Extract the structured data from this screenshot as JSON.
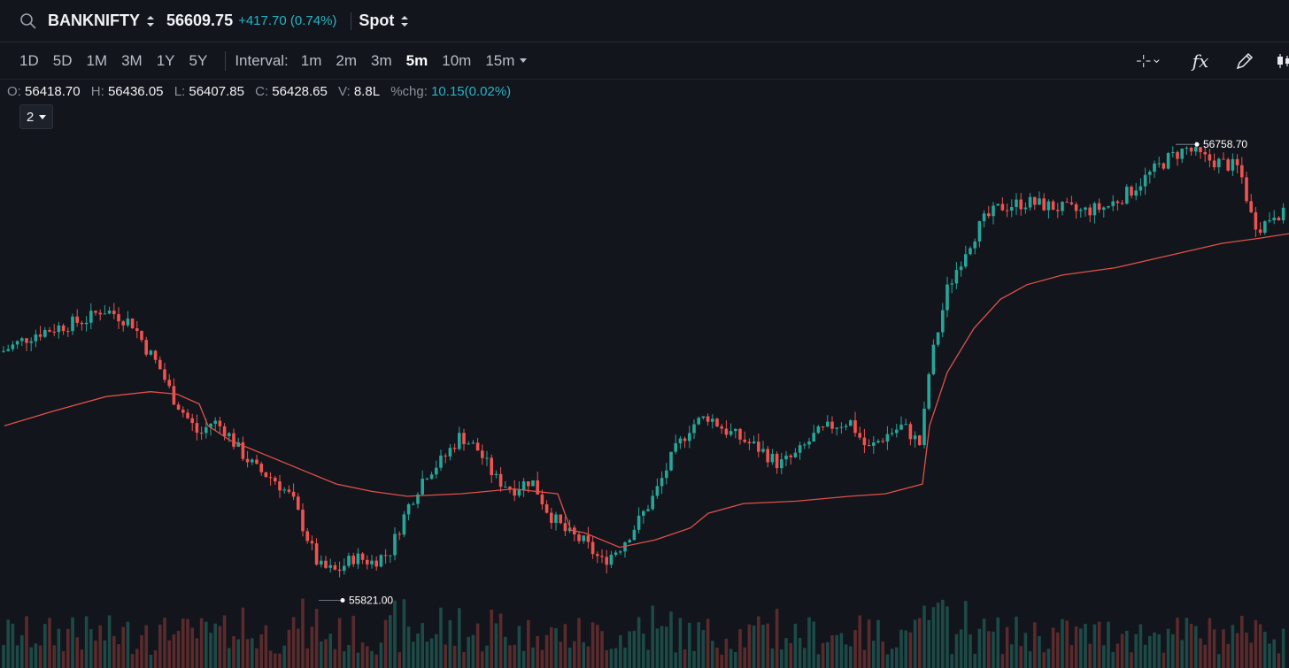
{
  "header": {
    "symbol": "BANKNIFTY",
    "price": "56609.75",
    "change": "+417.70 (0.74%)",
    "instrument": "Spot",
    "search_icon": "search-icon",
    "updown_icon": "updown-chevron-icon"
  },
  "toolbar": {
    "ranges": [
      "1D",
      "5D",
      "1M",
      "3M",
      "1Y",
      "5Y"
    ],
    "interval_label": "Interval:",
    "intervals": [
      "1m",
      "2m",
      "3m",
      "5m",
      "10m",
      "15m"
    ],
    "active_interval": "5m",
    "tools": [
      "crosshair-icon",
      "function-icon",
      "pen-icon",
      "candles-icon"
    ],
    "fx_glyph": "fx"
  },
  "ohlc": {
    "o_label": "O:",
    "o": "56418.70",
    "h_label": "H:",
    "h": "56436.05",
    "l_label": "L:",
    "l": "56407.85",
    "c_label": "C:",
    "c": "56428.65",
    "v_label": "V:",
    "v": "8.8L",
    "chg_label": "%chg:",
    "chg": "10.15(0.02%)"
  },
  "layer_selector": "2",
  "colors": {
    "background": "#12151b",
    "up": "#26a69a",
    "down": "#ef5350",
    "ma_line": "#e0504a",
    "accent": "#27b5c4"
  },
  "chart_data": {
    "type": "candlestick",
    "high_marker": "56758.70",
    "low_marker": "55821.00",
    "close_trend": [
      [
        0,
        56330
      ],
      [
        20,
        56350
      ],
      [
        40,
        56370
      ],
      [
        60,
        56380
      ],
      [
        80,
        56390
      ],
      [
        100,
        56400
      ],
      [
        115,
        56420
      ],
      [
        130,
        56410
      ],
      [
        150,
        56390
      ],
      [
        165,
        56340
      ],
      [
        180,
        56300
      ],
      [
        195,
        56240
      ],
      [
        210,
        56200
      ],
      [
        225,
        56160
      ],
      [
        240,
        56190
      ],
      [
        255,
        56170
      ],
      [
        270,
        56130
      ],
      [
        290,
        56090
      ],
      [
        310,
        56070
      ],
      [
        330,
        56030
      ],
      [
        345,
        55960
      ],
      [
        360,
        55890
      ],
      [
        380,
        55880
      ],
      [
        400,
        55910
      ],
      [
        420,
        55900
      ],
      [
        440,
        55920
      ],
      [
        460,
        56010
      ],
      [
        480,
        56080
      ],
      [
        500,
        56110
      ],
      [
        520,
        56160
      ],
      [
        540,
        56130
      ],
      [
        560,
        56070
      ],
      [
        580,
        56050
      ],
      [
        600,
        56070
      ],
      [
        620,
        56000
      ],
      [
        640,
        55960
      ],
      [
        660,
        55940
      ],
      [
        680,
        55900
      ],
      [
        700,
        55930
      ],
      [
        720,
        55980
      ],
      [
        740,
        56040
      ],
      [
        760,
        56120
      ],
      [
        780,
        56180
      ],
      [
        800,
        56200
      ],
      [
        820,
        56170
      ],
      [
        840,
        56150
      ],
      [
        860,
        56130
      ],
      [
        880,
        56100
      ],
      [
        900,
        56120
      ],
      [
        920,
        56160
      ],
      [
        940,
        56180
      ],
      [
        960,
        56190
      ],
      [
        980,
        56130
      ],
      [
        1000,
        56160
      ],
      [
        1020,
        56180
      ],
      [
        1040,
        56140
      ],
      [
        1050,
        56300
      ],
      [
        1070,
        56460
      ],
      [
        1090,
        56540
      ],
      [
        1110,
        56600
      ],
      [
        1130,
        56630
      ],
      [
        1160,
        56640
      ],
      [
        1190,
        56630
      ],
      [
        1220,
        56620
      ],
      [
        1250,
        56630
      ],
      [
        1275,
        56660
      ],
      [
        1300,
        56700
      ],
      [
        1320,
        56730
      ],
      [
        1340,
        56750
      ],
      [
        1360,
        56730
      ],
      [
        1380,
        56720
      ],
      [
        1400,
        56710
      ],
      [
        1415,
        56600
      ],
      [
        1425,
        56590
      ],
      [
        1440,
        56620
      ],
      [
        1456,
        56610
      ]
    ],
    "ma_trend": [
      [
        5,
        56180
      ],
      [
        60,
        56210
      ],
      [
        120,
        56240
      ],
      [
        170,
        56250
      ],
      [
        200,
        56245
      ],
      [
        225,
        56225
      ],
      [
        235,
        56180
      ],
      [
        260,
        56150
      ],
      [
        300,
        56120
      ],
      [
        340,
        56090
      ],
      [
        380,
        56060
      ],
      [
        420,
        56045
      ],
      [
        460,
        56035
      ],
      [
        520,
        56040
      ],
      [
        580,
        56050
      ],
      [
        630,
        56040
      ],
      [
        645,
        55965
      ],
      [
        660,
        55960
      ],
      [
        700,
        55930
      ],
      [
        740,
        55945
      ],
      [
        780,
        55970
      ],
      [
        800,
        56000
      ],
      [
        840,
        56020
      ],
      [
        900,
        56025
      ],
      [
        960,
        56035
      ],
      [
        1000,
        56040
      ],
      [
        1042,
        56060
      ],
      [
        1050,
        56180
      ],
      [
        1070,
        56290
      ],
      [
        1100,
        56380
      ],
      [
        1130,
        56440
      ],
      [
        1160,
        56470
      ],
      [
        1200,
        56490
      ],
      [
        1260,
        56505
      ],
      [
        1320,
        56530
      ],
      [
        1380,
        56555
      ],
      [
        1420,
        56565
      ],
      [
        1456,
        56575
      ]
    ]
  }
}
